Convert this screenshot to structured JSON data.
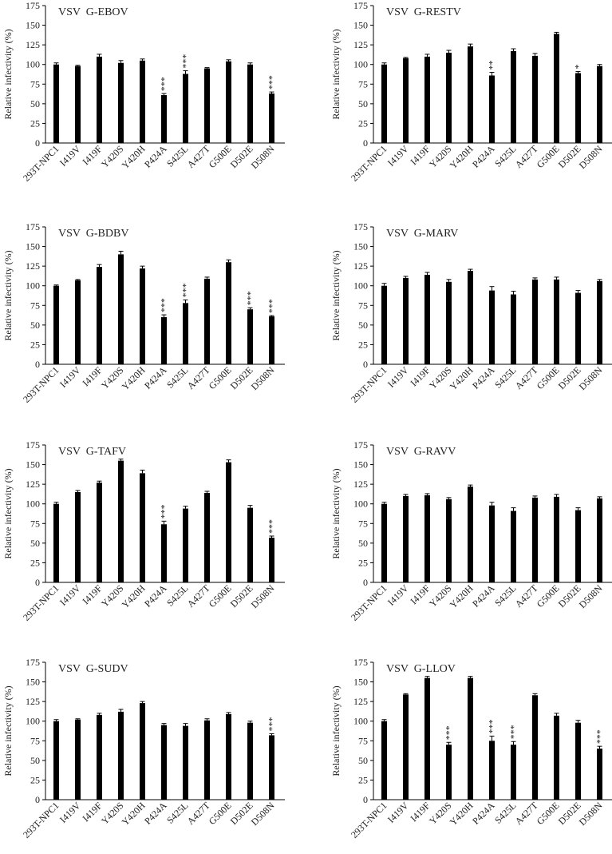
{
  "chart_data": [
    {
      "type": "bar",
      "title": "VSV  G-EBOV",
      "ylabel": "Relative infectivity (%)",
      "categories": [
        "293T-NPC1",
        "I419V",
        "I419F",
        "Y420S",
        "Y420H",
        "P424A",
        "S425L",
        "A427T",
        "G500E",
        "D502E",
        "D508N"
      ],
      "values": [
        100,
        98,
        110,
        102,
        105,
        61,
        88,
        95,
        104,
        100,
        63
      ],
      "errors": [
        2,
        1,
        3,
        3,
        2,
        2,
        4,
        1,
        2,
        2,
        2
      ],
      "significance": [
        null,
        null,
        null,
        null,
        null,
        "***",
        "***",
        null,
        null,
        null,
        "***"
      ],
      "color": "#000000",
      "ylim": [
        0,
        175
      ],
      "yticks": [
        0,
        25,
        50,
        75,
        100,
        125,
        150,
        175
      ]
    },
    {
      "type": "bar",
      "title": "VSV  G-RESTV",
      "ylabel": "Relative infectivity (%)",
      "categories": [
        "293T-NPC1",
        "I419V",
        "I419F",
        "Y420S",
        "Y420H",
        "P424A",
        "S425L",
        "A427T",
        "G500E",
        "D502E",
        "D508N"
      ],
      "values": [
        100,
        108,
        110,
        115,
        123,
        86,
        117,
        111,
        139,
        89,
        98
      ],
      "errors": [
        2,
        1,
        3,
        3,
        3,
        4,
        3,
        3,
        2,
        2,
        2
      ],
      "significance": [
        null,
        null,
        null,
        null,
        null,
        "**",
        null,
        null,
        null,
        "*",
        null
      ],
      "color": "#000000",
      "ylim": [
        0,
        175
      ],
      "yticks": [
        0,
        25,
        50,
        75,
        100,
        125,
        150,
        175
      ]
    },
    {
      "type": "bar",
      "title": "VSV  G-BDBV",
      "ylabel": "Relative infectivity (%)",
      "categories": [
        "293T-NPC1",
        "I419V",
        "I419F",
        "Y420S",
        "Y420H",
        "P424A",
        "S425L",
        "A427T",
        "G500E",
        "D502E",
        "D508N"
      ],
      "values": [
        100,
        107,
        124,
        140,
        122,
        60,
        78,
        109,
        130,
        70,
        61
      ],
      "errors": [
        1,
        1,
        3,
        4,
        3,
        3,
        4,
        2,
        3,
        2,
        1
      ],
      "significance": [
        null,
        null,
        null,
        null,
        null,
        "***",
        "***",
        null,
        null,
        "***",
        "***"
      ],
      "color": "#000000",
      "ylim": [
        0,
        175
      ],
      "yticks": [
        0,
        25,
        50,
        75,
        100,
        125,
        150,
        175
      ]
    },
    {
      "type": "bar",
      "title": "VSV  G-MARV",
      "ylabel": "Relative infectivity (%)",
      "categories": [
        "293T-NPC1",
        "I419V",
        "I419F",
        "Y420S",
        "Y420H",
        "P424A",
        "S425L",
        "A427T",
        "G500E",
        "D502E",
        "D508N"
      ],
      "values": [
        100,
        110,
        114,
        105,
        119,
        94,
        89,
        108,
        108,
        91,
        106
      ],
      "errors": [
        3,
        2,
        3,
        3,
        2,
        5,
        4,
        2,
        3,
        3,
        2
      ],
      "significance": [
        null,
        null,
        null,
        null,
        null,
        null,
        null,
        null,
        null,
        null,
        null
      ],
      "color": "#000000",
      "ylim": [
        0,
        175
      ],
      "yticks": [
        0,
        25,
        50,
        75,
        100,
        125,
        150,
        175
      ]
    },
    {
      "type": "bar",
      "title": "VSV  G-TAFV",
      "ylabel": "Relative infectivity (%)",
      "categories": [
        "293T-NPC1",
        "I419V",
        "I419F",
        "Y420S",
        "Y420H",
        "P424A",
        "S425L",
        "A427T",
        "G500E",
        "D502E",
        "D508N"
      ],
      "values": [
        100,
        115,
        127,
        155,
        139,
        74,
        94,
        114,
        153,
        95,
        57
      ],
      "errors": [
        2,
        2,
        2,
        2,
        4,
        4,
        3,
        2,
        3,
        3,
        2
      ],
      "significance": [
        null,
        null,
        null,
        null,
        null,
        "***",
        null,
        null,
        null,
        null,
        "***"
      ],
      "color": "#000000",
      "ylim": [
        0,
        175
      ],
      "yticks": [
        0,
        25,
        50,
        75,
        100,
        125,
        150,
        175
      ]
    },
    {
      "type": "bar",
      "title": "VSV  G-RAVV",
      "ylabel": "Relative infectivity (%)",
      "categories": [
        "293T-NPC1",
        "I419V",
        "I419F",
        "Y420S",
        "Y420H",
        "P424A",
        "S425L",
        "A427T",
        "G500E",
        "D502E",
        "D508N"
      ],
      "values": [
        100,
        110,
        111,
        106,
        122,
        98,
        91,
        108,
        109,
        92,
        107
      ],
      "errors": [
        2,
        2,
        2,
        2,
        2,
        4,
        4,
        2,
        3,
        3,
        2
      ],
      "significance": [
        null,
        null,
        null,
        null,
        null,
        null,
        null,
        null,
        null,
        null,
        null
      ],
      "color": "#000000",
      "ylim": [
        0,
        175
      ],
      "yticks": [
        0,
        25,
        50,
        75,
        100,
        125,
        150,
        175
      ]
    },
    {
      "type": "bar",
      "title": "VSV  G-SUDV",
      "ylabel": "Relative infectivity (%)",
      "categories": [
        "293T-NPC1",
        "I419V",
        "I419F",
        "Y420S",
        "Y420H",
        "P424A",
        "S425L",
        "A427T",
        "G500E",
        "D502E",
        "D508N"
      ],
      "values": [
        100,
        102,
        108,
        112,
        123,
        95,
        94,
        101,
        109,
        98,
        82
      ],
      "errors": [
        2,
        1,
        2,
        3,
        2,
        2,
        3,
        2,
        2,
        2,
        2
      ],
      "significance": [
        null,
        null,
        null,
        null,
        null,
        null,
        null,
        null,
        null,
        null,
        "***"
      ],
      "color": "#000000",
      "ylim": [
        0,
        175
      ],
      "yticks": [
        0,
        25,
        50,
        75,
        100,
        125,
        150,
        175
      ]
    },
    {
      "type": "bar",
      "title": "VSV  G-LLOV",
      "ylabel": "Relative infectivity (%)",
      "categories": [
        "293T-NPC1",
        "I419V",
        "I419F",
        "Y420S",
        "Y420H",
        "P424A",
        "S425L",
        "A427T",
        "G500E",
        "D502E",
        "D508N"
      ],
      "values": [
        100,
        134,
        155,
        70,
        155,
        75,
        70,
        133,
        107,
        98,
        65
      ],
      "errors": [
        2,
        1,
        2,
        3,
        2,
        6,
        4,
        2,
        3,
        3,
        3
      ],
      "significance": [
        null,
        null,
        null,
        "***",
        null,
        "***",
        "***",
        null,
        null,
        null,
        "***"
      ],
      "color": "#000000",
      "ylim": [
        0,
        175
      ],
      "yticks": [
        0,
        25,
        50,
        75,
        100,
        125,
        150,
        175
      ]
    }
  ]
}
